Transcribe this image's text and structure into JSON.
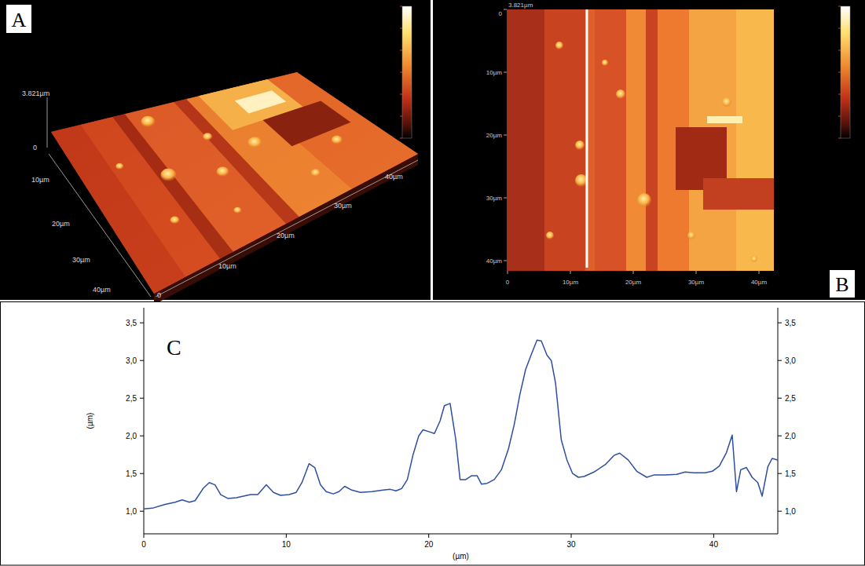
{
  "panels": {
    "a": {
      "letter": "A",
      "z_ticks": [
        "0",
        "3.821µm"
      ],
      "depth_ticks": [
        "10µm",
        "20µm",
        "30µm",
        "40µm"
      ],
      "front_ticks": [
        "0",
        "10µm",
        "20µm",
        "30µm",
        "40µm"
      ]
    },
    "b": {
      "letter": "B",
      "z_label": "3.821µm",
      "y_ticks": [
        "0",
        "10µm",
        "20µm",
        "30µm",
        "40µm"
      ],
      "x_ticks": [
        "0",
        "10µm",
        "20µm",
        "30µm",
        "40µm"
      ]
    }
  },
  "chart_data": {
    "type": "line",
    "title": "C",
    "x_label": "(µm)",
    "y_label": "(µm)",
    "x": [
      0,
      0.6,
      1.5,
      2.2,
      2.7,
      3.2,
      3.6,
      4.2,
      4.6,
      5.0,
      5.4,
      5.9,
      6.5,
      7.5,
      8.0,
      8.6,
      9.1,
      9.6,
      10.2,
      10.7,
      11.1,
      11.6,
      12.0,
      12.4,
      12.8,
      13.3,
      13.7,
      14.1,
      14.6,
      15.2,
      16.0,
      16.8,
      17.3,
      17.7,
      18.1,
      18.5,
      18.9,
      19.3,
      19.6,
      20.1,
      20.4,
      20.8,
      21.1,
      21.5,
      21.9,
      22.2,
      22.6,
      23.0,
      23.4,
      23.7,
      24.1,
      24.6,
      25.1,
      25.6,
      26.0,
      26.4,
      26.8,
      27.2,
      27.6,
      27.9,
      28.3,
      28.6,
      28.9,
      29.3,
      29.7,
      30.1,
      30.5,
      30.9,
      31.6,
      32.4,
      33.0,
      33.4,
      34.0,
      34.6,
      35.3,
      35.8,
      36.6,
      37.4,
      38.0,
      38.6,
      39.4,
      39.9,
      40.4,
      40.9,
      41.3,
      41.6,
      41.9,
      42.3,
      42.7,
      43.1,
      43.4,
      43.8,
      44.1,
      44.5
    ],
    "series": [
      {
        "color": "#2e4ea3",
        "values": [
          1.03,
          1.04,
          1.09,
          1.12,
          1.15,
          1.12,
          1.14,
          1.31,
          1.38,
          1.35,
          1.22,
          1.17,
          1.18,
          1.22,
          1.22,
          1.35,
          1.25,
          1.21,
          1.22,
          1.25,
          1.38,
          1.63,
          1.58,
          1.35,
          1.26,
          1.23,
          1.26,
          1.33,
          1.28,
          1.25,
          1.26,
          1.28,
          1.29,
          1.27,
          1.3,
          1.42,
          1.75,
          2.0,
          2.08,
          2.05,
          2.03,
          2.2,
          2.4,
          2.43,
          1.95,
          1.42,
          1.42,
          1.47,
          1.47,
          1.36,
          1.37,
          1.42,
          1.55,
          1.83,
          2.15,
          2.55,
          2.88,
          3.08,
          3.27,
          3.26,
          3.07,
          3.0,
          2.7,
          1.95,
          1.68,
          1.5,
          1.45,
          1.46,
          1.52,
          1.62,
          1.74,
          1.77,
          1.68,
          1.53,
          1.45,
          1.48,
          1.48,
          1.49,
          1.52,
          1.51,
          1.51,
          1.53,
          1.6,
          1.78,
          2.01,
          1.26,
          1.55,
          1.58,
          1.45,
          1.38,
          1.2,
          1.59,
          1.7,
          1.68
        ]
      }
    ],
    "xlim": [
      0,
      44.5
    ],
    "ylim": [
      0.7,
      3.7
    ],
    "xticks": [
      0,
      10,
      20,
      30,
      40
    ],
    "yticks": [
      {
        "value": 1.0,
        "label": "1,0"
      },
      {
        "value": 1.5,
        "label": "1,5"
      },
      {
        "value": 2.0,
        "label": "2,0"
      },
      {
        "value": 2.5,
        "label": "2,5"
      },
      {
        "value": 3.0,
        "label": "3,0"
      },
      {
        "value": 3.5,
        "label": "3,5"
      }
    ],
    "y2lim": [
      0.7,
      3.7
    ],
    "y2ticks": [
      {
        "value": 1.0,
        "label": "1,0"
      },
      {
        "value": 1.5,
        "label": "1,5"
      },
      {
        "value": 2.0,
        "label": "2,0"
      },
      {
        "value": 2.5,
        "label": "2,5"
      },
      {
        "value": 3.0,
        "label": "3,0"
      },
      {
        "value": 3.5,
        "label": "3,5"
      }
    ],
    "grid": false
  }
}
